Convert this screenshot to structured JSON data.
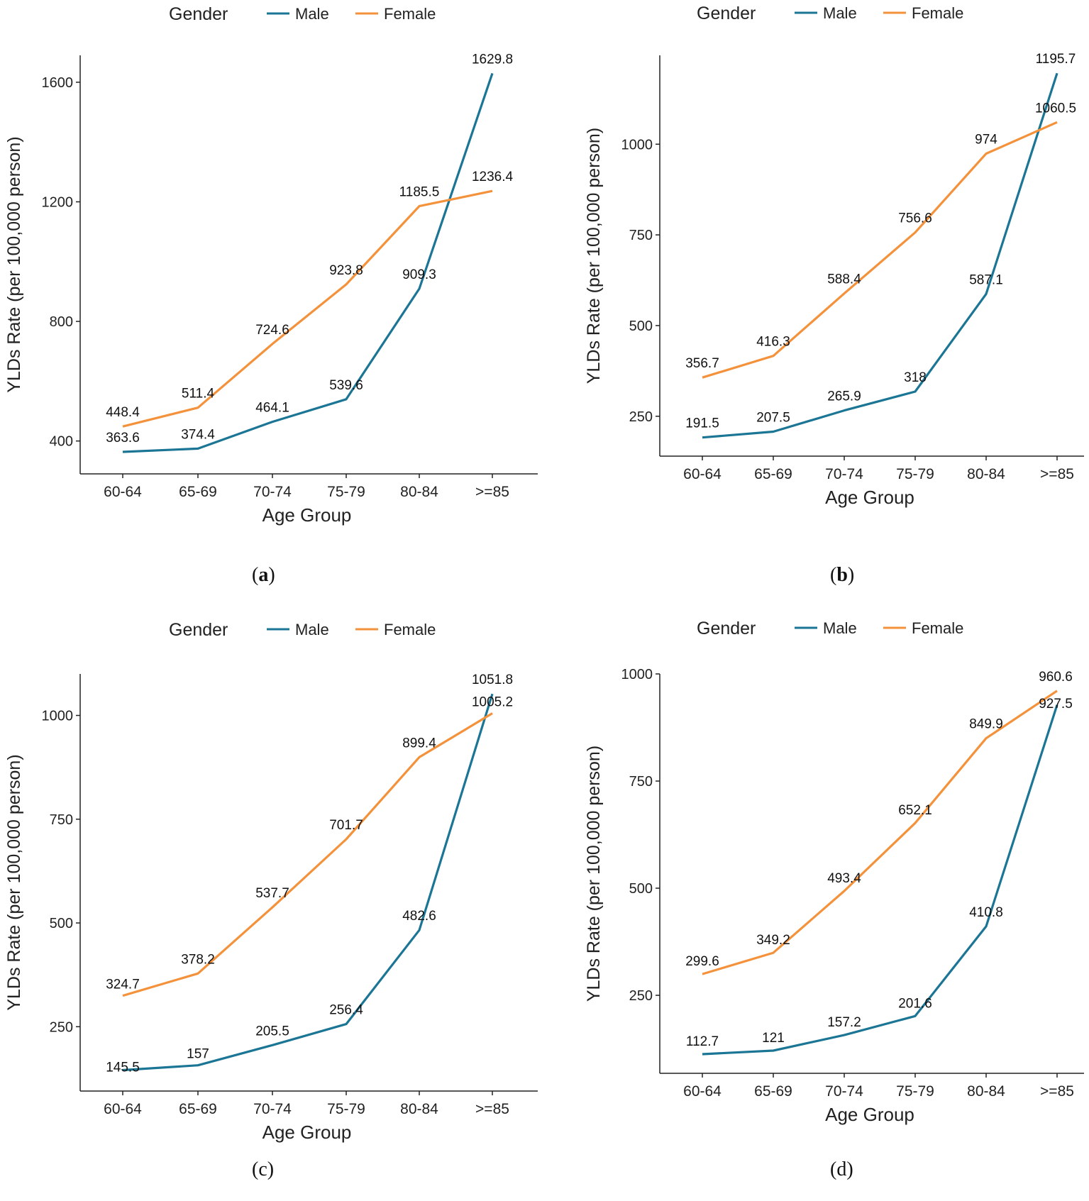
{
  "figure": {
    "panels": [
      {
        "id": "a",
        "caption_open": "(",
        "caption_label": "a",
        "caption_close": ")"
      },
      {
        "id": "b",
        "caption_open": "(",
        "caption_label": "b",
        "caption_close": ")"
      },
      {
        "id": "c",
        "caption_open": "(",
        "caption_label": "c",
        "caption_close": ")"
      },
      {
        "id": "d",
        "caption_open": "(",
        "caption_label": "d",
        "caption_close": ")"
      }
    ]
  },
  "colors": {
    "male": "#1b7594",
    "female": "#f4923b",
    "axis": "#222222"
  },
  "chart_data": [
    {
      "type": "line",
      "title": "",
      "legend_title": "Gender",
      "legend_position": "top",
      "xlabel": "Age Group",
      "ylabel": "YLDs Rate (per 100,000 person)",
      "categories": [
        "60-64",
        "65-69",
        "70-74",
        "75-79",
        "80-84",
        ">=85"
      ],
      "ylim": [
        290,
        1690
      ],
      "yticks": [
        400,
        800,
        1200,
        1600
      ],
      "series": [
        {
          "name": "Male",
          "values": [
            363.6,
            374.4,
            464.1,
            539.6,
            909.3,
            1629.8
          ],
          "labels": [
            "363.6",
            "374.4",
            "464.1",
            "539.6",
            "909.3",
            "1629.8"
          ]
        },
        {
          "name": "Female",
          "values": [
            448.4,
            511.4,
            724.6,
            923.8,
            1185.5,
            1236.4
          ],
          "labels": [
            "448.4",
            "511.4",
            "724.6",
            "923.8",
            "1185.5",
            "1236.4"
          ]
        }
      ]
    },
    {
      "type": "line",
      "title": "",
      "legend_title": "Gender",
      "legend_position": "top",
      "xlabel": "Age Group",
      "ylabel": "YLDs Rate (per 100,000 person)",
      "categories": [
        "60-64",
        "65-69",
        "70-74",
        "75-79",
        "80-84",
        ">=85"
      ],
      "ylim": [
        140,
        1245
      ],
      "yticks": [
        250,
        500,
        750,
        1000
      ],
      "series": [
        {
          "name": "Male",
          "values": [
            191.5,
            207.5,
            265.9,
            318,
            587.1,
            1195.7
          ],
          "labels": [
            "191.5",
            "207.5",
            "265.9",
            "318",
            "587.1",
            "1195.7"
          ]
        },
        {
          "name": "Female",
          "values": [
            356.7,
            416.3,
            588.4,
            756.6,
            974,
            1060.5
          ],
          "labels": [
            "356.7",
            "416.3",
            "588.4",
            "756.6",
            "974",
            "1060.5"
          ]
        }
      ]
    },
    {
      "type": "line",
      "title": "",
      "legend_title": "Gender",
      "legend_position": "top",
      "xlabel": "Age Group",
      "ylabel": "YLDs Rate (per 100,000 person)",
      "categories": [
        "60-64",
        "65-69",
        "70-74",
        "75-79",
        "80-84",
        ">=85"
      ],
      "ylim": [
        95,
        1100
      ],
      "yticks": [
        250,
        500,
        750,
        1000
      ],
      "series": [
        {
          "name": "Male",
          "values": [
            145.5,
            157,
            205.5,
            256.4,
            482.6,
            1051.8
          ],
          "labels": [
            "145.5",
            "157",
            "205.5",
            "256.4",
            "482.6",
            "1051.8"
          ]
        },
        {
          "name": "Female",
          "values": [
            324.7,
            378.2,
            537.7,
            701.7,
            899.4,
            1005.2
          ],
          "labels": [
            "324.7",
            "378.2",
            "537.7",
            "701.7",
            "899.4",
            "1005.2"
          ]
        }
      ]
    },
    {
      "type": "line",
      "title": "",
      "legend_title": "Gender",
      "legend_position": "top",
      "xlabel": "Age Group",
      "ylabel": "YLDs Rate (per 100,000 person)",
      "categories": [
        "60-64",
        "65-69",
        "70-74",
        "75-79",
        "80-84",
        ">=85"
      ],
      "ylim": [
        68,
        1000
      ],
      "yticks": [
        250,
        500,
        750,
        1000
      ],
      "series": [
        {
          "name": "Male",
          "values": [
            112.7,
            121,
            157.2,
            201.6,
            410.8,
            927.5
          ],
          "labels": [
            "112.7",
            "121",
            "157.2",
            "201.6",
            "410.8",
            "927.5"
          ]
        },
        {
          "name": "Female",
          "values": [
            299.6,
            349.2,
            493.4,
            652.1,
            849.9,
            960.6
          ],
          "labels": [
            "299.6",
            "349.2",
            "493.4",
            "652.1",
            "849.9",
            "960.6"
          ]
        }
      ]
    }
  ]
}
